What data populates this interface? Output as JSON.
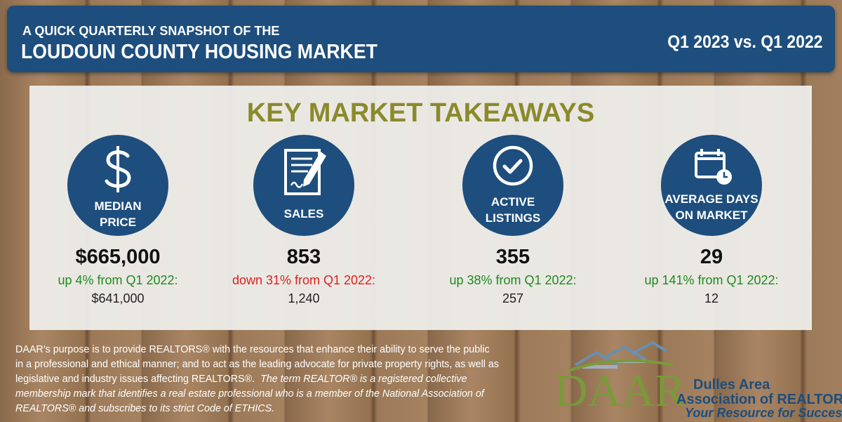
{
  "header": {
    "kicker": "A QUICK QUARTERLY SNAPSHOT OF THE",
    "title": "LOUDOUN COUNTY HOUSING MARKET",
    "period": "Q1 2023 vs. Q1 2022"
  },
  "panel": {
    "title": "KEY MARKET TAKEAWAYS",
    "stats": [
      {
        "label": [
          "MEDIAN",
          "PRICE"
        ],
        "value": "$665,000",
        "change": "up 4% from Q1 2022:",
        "change_color": "#1e8a1e",
        "previous": "$641,000"
      },
      {
        "label": [
          "SALES"
        ],
        "value": "853",
        "change": "down 31% from Q1 2022:",
        "change_color": "#e0201c",
        "previous": "1,240"
      },
      {
        "label": [
          "ACTIVE",
          "LISTINGS"
        ],
        "value": "355",
        "change": "up 38% from Q1 2022:",
        "change_color": "#1e8a1e",
        "previous": "257"
      },
      {
        "label": [
          "AVERAGE DAYS",
          "ON MARKET"
        ],
        "value": "29",
        "change": "up 141% from Q1 2022:",
        "change_color": "#1e8a1e",
        "previous": "12"
      }
    ]
  },
  "footer": {
    "plain": "DAAR’s purpose is to provide REALTORS® with the resources that enhance their ability to serve the public in a professional and ethical manner; and to act as the leading advocate for private property rights, as well as legislative and industry issues affecting REALTORS®.",
    "italic": "The term REALTOR® is a registered collective membership mark that identifies a real estate professional who is a member of the National Association of REALTORS® and subscribes to its strict Code of ETHICS."
  },
  "logo": {
    "mark": "DAAR",
    "line1": "Dulles Area",
    "line2": "Association of REALTORS®",
    "tagline": "Your Resource for Success"
  }
}
